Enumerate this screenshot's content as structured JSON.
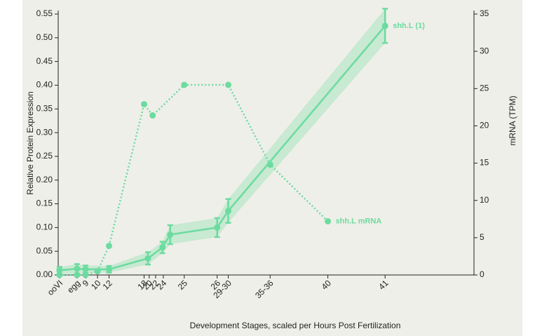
{
  "chart_data": {
    "type": "line",
    "x_label": "Development Stages, scaled per Hours Post Fertilization",
    "y_label": "Relative Protein Expression",
    "y2_label": "mRNA (TPM)",
    "xlim": [
      -0.3,
      97
    ],
    "xticks": [
      {
        "value": 0,
        "label": "ooVI"
      },
      {
        "value": 4.1,
        "label": "egg"
      },
      {
        "value": 6.1,
        "label": "9"
      },
      {
        "value": 8.9,
        "label": "10"
      },
      {
        "value": 11.6,
        "label": "12"
      },
      {
        "value": 19.8,
        "label": "18"
      },
      {
        "value": 21.0,
        "label": "20"
      },
      {
        "value": 22.5,
        "label": "22"
      },
      {
        "value": 24.3,
        "label": "24"
      },
      {
        "value": 29.2,
        "label": "25"
      },
      {
        "value": 36.9,
        "label": "26"
      },
      {
        "value": 39.5,
        "label": "29-30"
      },
      {
        "value": 49.3,
        "label": "35-36"
      },
      {
        "value": 62.8,
        "label": "40"
      },
      {
        "value": 76.2,
        "label": "41"
      }
    ],
    "ylim": [
      0,
      0.55
    ],
    "yticks": [
      {
        "value": 0,
        "label": "0.00"
      },
      0.05,
      {
        "value": 0.1,
        "label": "0.10"
      },
      0.15,
      {
        "value": 0.2,
        "label": "0.20"
      },
      0.25,
      {
        "value": 0.3,
        "label": "0.30"
      },
      0.35,
      {
        "value": 0.4,
        "label": "0.40"
      },
      0.45,
      {
        "value": 0.5,
        "label": "0.50"
      },
      0.55
    ],
    "y2lim": [
      0,
      35
    ],
    "y2ticks": [
      0,
      5,
      10,
      15,
      20,
      25,
      30,
      35
    ],
    "series": [
      {
        "name": "shh.L (1)",
        "color": "#6cdba0",
        "style": "solid",
        "x": [
          0,
          4.1,
          6.1,
          11.6,
          20.7,
          24.1,
          25.9,
          36.9,
          39.5,
          76.2
        ],
        "values": [
          0.01,
          0.013,
          0.012,
          0.012,
          0.035,
          0.058,
          0.085,
          0.1,
          0.135,
          0.525
        ],
        "errors": [
          0.007,
          0.01,
          0.008,
          0.007,
          0.013,
          0.012,
          0.02,
          0.02,
          0.025,
          0.036
        ]
      },
      {
        "name": "shh.L mRNA",
        "color": "#6cdba0",
        "style": "dotted",
        "axis": "y2",
        "x": [
          0,
          4.1,
          6.1,
          8.9,
          11.6,
          19.8,
          21.8,
          29.2,
          39.5,
          49.3,
          62.8
        ],
        "values": [
          0,
          0,
          0,
          0.5,
          3.9,
          22.9,
          21.4,
          25.5,
          25.5,
          14.8,
          7.2
        ]
      }
    ]
  }
}
